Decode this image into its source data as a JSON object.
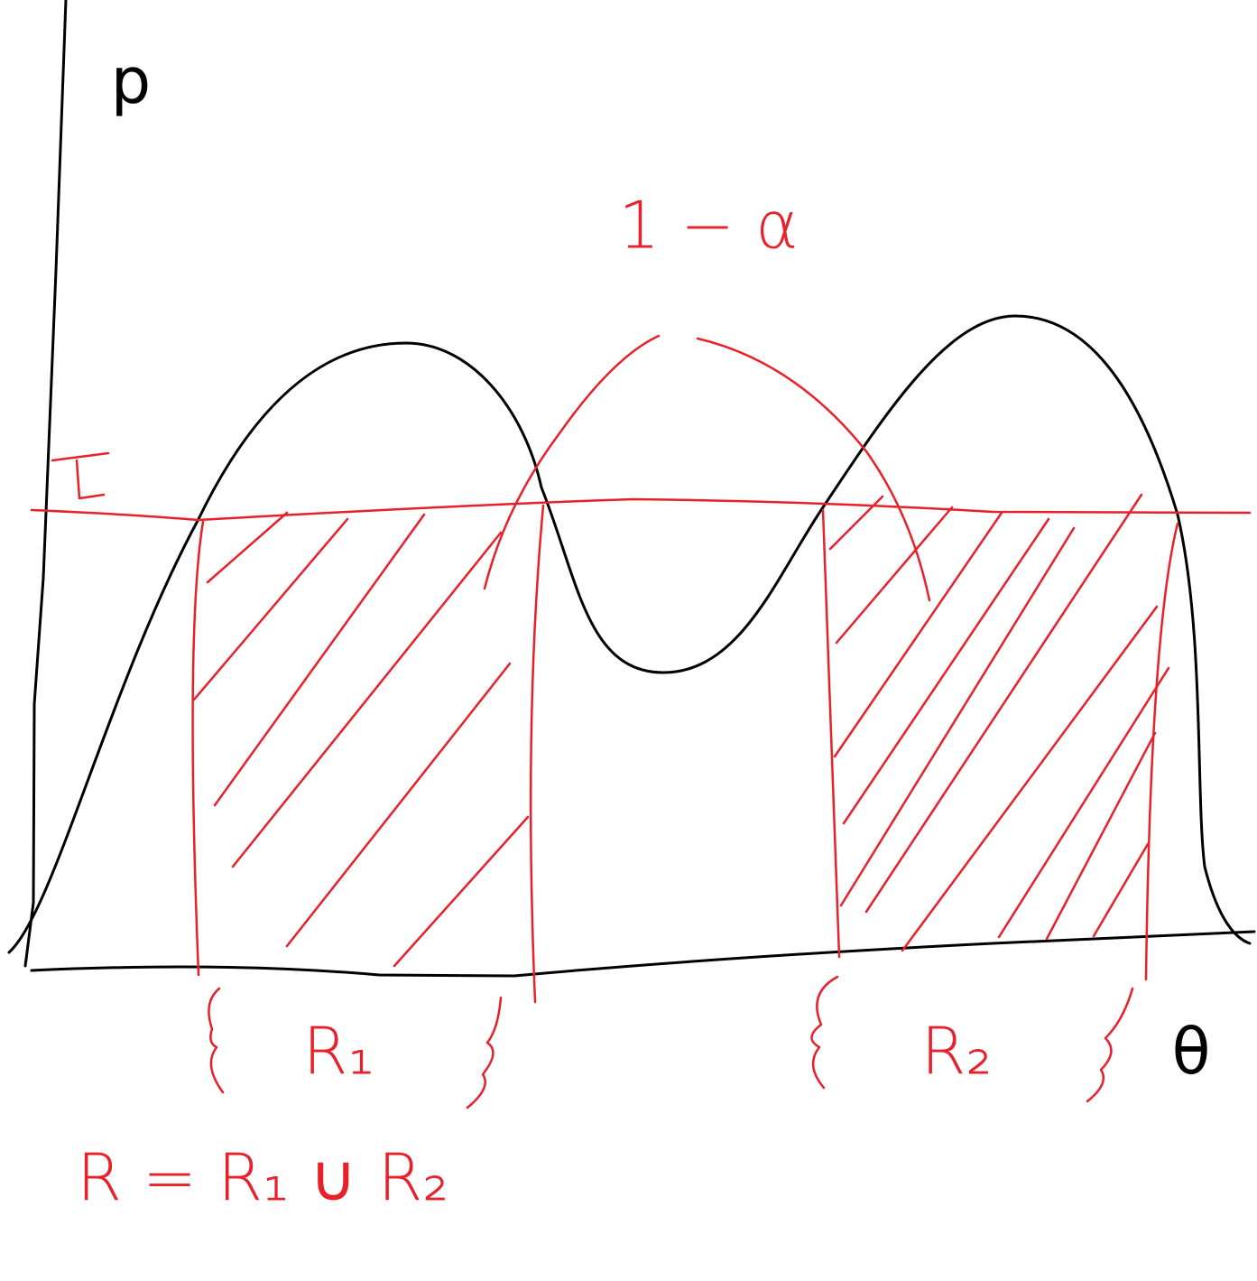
{
  "y_axis_label": "p",
  "x_axis_label": "θ",
  "threshold_label": "τ",
  "arc_label": "1 − α",
  "regions": [
    {
      "label": "R₁"
    },
    {
      "label": "R₂"
    }
  ],
  "formula": "R = R₁ ∪ R₂"
}
